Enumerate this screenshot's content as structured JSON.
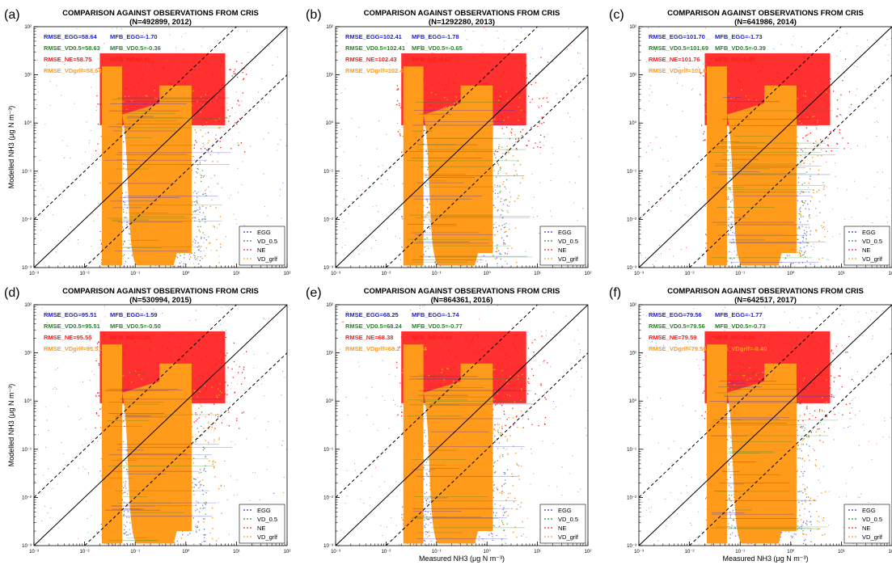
{
  "figure": {
    "ylabel_html": "Modelled",
    "xlabel_html": "Measured"
  },
  "common": {
    "title_line1": "COMPARISON AGAINST OBSERVATIONS FROM CRIS",
    "ylabel": "Modelled NH3 (μg N m⁻³)",
    "xlabel": "Measured NH3 (μg N m⁻³)",
    "x_ticks": [
      "10⁻³",
      "10⁻²",
      "10⁻¹",
      "10⁰",
      "10¹",
      "10²"
    ],
    "y_ticks": [
      "10²",
      "10¹",
      "10⁰",
      "10⁻¹",
      "10⁻²",
      "10⁻³"
    ],
    "legend": [
      "EGG",
      "VD_0.5",
      "NE",
      "VD_grlf"
    ]
  },
  "colors": {
    "EGG": "#2222dd",
    "VD_0.5": "#228822",
    "NE": "#ff1a1a",
    "VD_grlf": "#ff9a1a"
  },
  "chart_data": [
    {
      "type": "scatter",
      "panel": "(a)",
      "title": "COMPARISON AGAINST OBSERVATIONS FROM CRIS",
      "subtitle": "(N=492899, 2012)",
      "xscale": "log",
      "yscale": "log",
      "xlim": [
        0.001,
        100
      ],
      "ylim": [
        0.001,
        100
      ],
      "reference_lines": [
        "1:1 (solid)",
        "1:10 and 10:1 (dashed)"
      ],
      "legend_position": "lower-right",
      "series": [
        {
          "name": "EGG",
          "RMSE": 58.64,
          "MFB": -1.7
        },
        {
          "name": "VD_0.5",
          "RMSE": 58.63,
          "MFB": -0.36
        },
        {
          "name": "NE",
          "RMSE": 58.75,
          "MFB": 0.41
        },
        {
          "name": "VD_grlf",
          "RMSE": 58.64,
          "MFB": null
        }
      ],
      "stats_text": [
        {
          "rmse": "RMSE_EGG=58.64",
          "mfb": "MFB_EGG=-1.70"
        },
        {
          "rmse": "RMSE_VD0.5=58.63",
          "mfb": "MFB_VD0.5=-0.36"
        },
        {
          "rmse": "RMSE_NE=58.75",
          "mfb": "MFB_NE=0.41"
        },
        {
          "rmse": "RMSE_VDgrlf=58.64",
          "mfb": ""
        }
      ]
    },
    {
      "type": "scatter",
      "panel": "(b)",
      "title": "COMPARISON AGAINST OBSERVATIONS FROM CRIS",
      "subtitle": "(N=1292280, 2013)",
      "xscale": "log",
      "yscale": "log",
      "xlim": [
        0.001,
        100
      ],
      "ylim": [
        0.001,
        100
      ],
      "legend_position": "lower-right",
      "series": [
        {
          "name": "EGG",
          "RMSE": 102.41,
          "MFB": -1.78
        },
        {
          "name": "VD_0.5",
          "RMSE": 102.41,
          "MFB": -0.65
        },
        {
          "name": "NE",
          "RMSE": 102.43,
          "MFB": 0.67
        },
        {
          "name": "VD_grlf",
          "RMSE": 102.4,
          "MFB": null
        }
      ],
      "stats_text": [
        {
          "rmse": "RMSE_EGG=102.41",
          "mfb": "MFB_EGG=-1.78"
        },
        {
          "rmse": "RMSE_VD0.5=102.41",
          "mfb": "MFB_VD0.5=-0.65"
        },
        {
          "rmse": "RMSE_NE=102.43",
          "mfb": "MFB_NE=0.67"
        },
        {
          "rmse": "RMSE_VDgrlf=102.4",
          "mfb": ""
        }
      ]
    },
    {
      "type": "scatter",
      "panel": "(c)",
      "title": "COMPARISON AGAINST OBSERVATIONS FROM CRIS",
      "subtitle": "(N=641986, 2014)",
      "xscale": "log",
      "yscale": "log",
      "xlim": [
        0.001,
        100
      ],
      "ylim": [
        0.001,
        100
      ],
      "legend_position": "lower-right",
      "series": [
        {
          "name": "EGG",
          "RMSE": 101.7,
          "MFB": -1.73
        },
        {
          "name": "VD_0.5",
          "RMSE": 101.69,
          "MFB": -0.39
        },
        {
          "name": "NE",
          "RMSE": 101.76,
          "MFB": 0.9
        },
        {
          "name": "VD_grlf",
          "RMSE": 101.6,
          "MFB": null
        }
      ],
      "stats_text": [
        {
          "rmse": "RMSE_EGG=101.70",
          "mfb": "MFB_EGG=-1.73"
        },
        {
          "rmse": "RMSE_VD0.5=101.69",
          "mfb": "MFB_VD0.5=-0.39"
        },
        {
          "rmse": "RMSE_NE=101.76",
          "mfb": "MFB_NE=0.90"
        },
        {
          "rmse": "RMSE_VDgrlf=101.6",
          "mfb": ""
        }
      ]
    },
    {
      "type": "scatter",
      "panel": "(d)",
      "title": "COMPARISON AGAINST OBSERVATIONS FROM CRIS",
      "subtitle": "(N=530994, 2015)",
      "xscale": "log",
      "yscale": "log",
      "xlim": [
        0.001,
        100
      ],
      "ylim": [
        0.001,
        100
      ],
      "legend_position": "lower-right",
      "series": [
        {
          "name": "EGG",
          "RMSE": 95.51,
          "MFB": -1.59
        },
        {
          "name": "VD_0.5",
          "RMSE": 95.51,
          "MFB": -0.5
        },
        {
          "name": "NE",
          "RMSE": 95.55,
          "MFB": 0.28
        },
        {
          "name": "VD_grlf",
          "RMSE": 95.51,
          "MFB": null
        }
      ],
      "stats_text": [
        {
          "rmse": "RMSE_EGG=95.51",
          "mfb": "MFB_EGG=-1.59"
        },
        {
          "rmse": "RMSE_VD0.5=95.51",
          "mfb": "MFB_VD0.5=-0.50"
        },
        {
          "rmse": "RMSE_NE=95.55",
          "mfb": "MFB_NE=0.28"
        },
        {
          "rmse": "RMSE_VDgrlf=95.51",
          "mfb": ""
        }
      ]
    },
    {
      "type": "scatter",
      "panel": "(e)",
      "title": "COMPARISON AGAINST OBSERVATIONS FROM CRIS",
      "subtitle": "(N=864361, 2016)",
      "xscale": "log",
      "yscale": "log",
      "xlim": [
        0.001,
        100
      ],
      "ylim": [
        0.001,
        100
      ],
      "legend_position": "lower-right",
      "series": [
        {
          "name": "EGG",
          "RMSE": 68.25,
          "MFB": -1.74
        },
        {
          "name": "VD_0.5",
          "RMSE": 68.24,
          "MFB": -0.77
        },
        {
          "name": "NE",
          "RMSE": 68.38,
          "MFB": 0.44
        },
        {
          "name": "VD_grlf",
          "RMSE": 68.2,
          "MFB": 0.54
        }
      ],
      "stats_text": [
        {
          "rmse": "RMSE_EGG=68.25",
          "mfb": "MFB_EGG=-1.74"
        },
        {
          "rmse": "RMSE_VD0.5=68.24",
          "mfb": "MFB_VD0.5=-0.77"
        },
        {
          "rmse": "RMSE_NE=68.38",
          "mfb": "MFB_NE=0.44"
        },
        {
          "rmse": "RMSE_VDgrlf=68.2",
          "mfb": "=0.54"
        }
      ]
    },
    {
      "type": "scatter",
      "panel": "(f)",
      "title": "COMPARISON AGAINST OBSERVATIONS FROM CRIS",
      "subtitle": "(N=642517, 2017)",
      "xscale": "log",
      "yscale": "log",
      "xlim": [
        0.001,
        100
      ],
      "ylim": [
        0.001,
        100
      ],
      "legend_position": "lower-right",
      "series": [
        {
          "name": "EGG",
          "RMSE": 79.56,
          "MFB": -1.77
        },
        {
          "name": "VD_0.5",
          "RMSE": 79.56,
          "MFB": -0.73
        },
        {
          "name": "NE",
          "RMSE": 79.59,
          "MFB": 0.08
        },
        {
          "name": "VD_grlf",
          "RMSE": 79.56,
          "MFB": -0.4
        }
      ],
      "stats_text": [
        {
          "rmse": "RMSE_EGG=79.56",
          "mfb": "MFB_EGG=-1.77"
        },
        {
          "rmse": "RMSE_VD0.5=79.56",
          "mfb": "MFB_VD0.5=-0.73"
        },
        {
          "rmse": "RMSE_NE=79.59",
          "mfb": "MFB_NE=0.08"
        },
        {
          "rmse": "RMSE_VDgrlf=79.56",
          "mfb": "MFB_VDgrlf=-0.40"
        }
      ]
    }
  ]
}
